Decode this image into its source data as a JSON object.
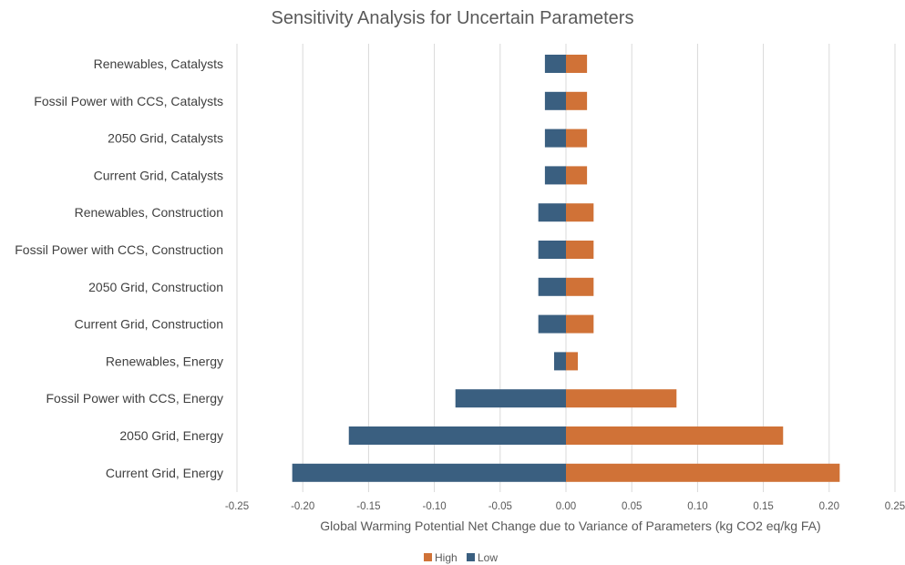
{
  "chart_data": {
    "type": "bar",
    "orientation": "horizontal",
    "title": "Sensitivity Analysis for Uncertain Parameters",
    "xlabel": "Global Warming Potential Net Change due to Variance of Parameters (kg CO2 eq/kg FA)",
    "ylabel": "",
    "xlim": [
      -0.25,
      0.25
    ],
    "x_ticks": [
      "-0.25",
      "-0.20",
      "-0.15",
      "-0.10",
      "-0.05",
      "0.00",
      "0.05",
      "0.10",
      "0.15",
      "0.20",
      "0.25"
    ],
    "x_tick_values": [
      -0.25,
      -0.2,
      -0.15,
      -0.1,
      -0.05,
      0,
      0.05,
      0.1,
      0.15,
      0.2,
      0.25
    ],
    "grid": "vertical",
    "legend_position": "bottom",
    "stacked": true,
    "categories": [
      "Renewables, Catalysts",
      "Fossil Power with CCS, Catalysts",
      "2050 Grid, Catalysts",
      "Current Grid, Catalysts",
      "Renewables, Construction",
      "Fossil Power with CCS, Construction",
      "2050 Grid, Construction",
      "Current Grid, Construction",
      "Renewables, Energy",
      "Fossil Power with CCS, Energy",
      "2050 Grid, Energy",
      "Current Grid, Energy"
    ],
    "series": [
      {
        "name": "High",
        "color": "#d07237",
        "values": [
          0.016,
          0.016,
          0.016,
          0.016,
          0.021,
          0.021,
          0.021,
          0.021,
          0.009,
          0.084,
          0.165,
          0.208
        ]
      },
      {
        "name": "Low",
        "color": "#3a5f80",
        "values": [
          -0.016,
          -0.016,
          -0.016,
          -0.016,
          -0.021,
          -0.021,
          -0.021,
          -0.021,
          -0.009,
          -0.084,
          -0.165,
          -0.208
        ]
      }
    ]
  }
}
